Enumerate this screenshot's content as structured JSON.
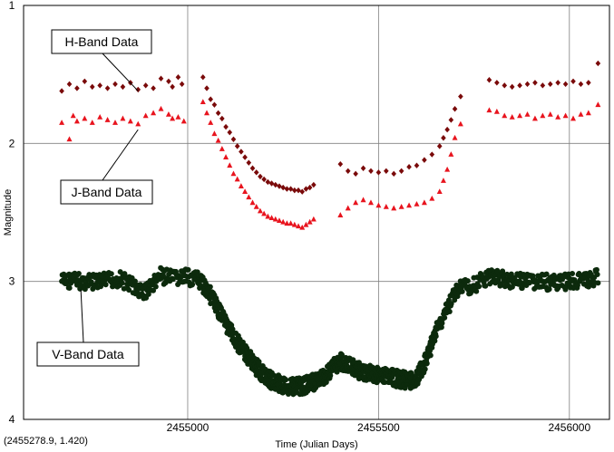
{
  "status": {
    "cursor_readout": "(2455278.9, 1.420)"
  },
  "colors": {
    "h_band": "#7a0a0a",
    "j_band": "#e8141e",
    "v_band": "#0c2a0c",
    "grid": "#808080",
    "frame": "#000000"
  },
  "chart_data": {
    "type": "scatter",
    "title": "",
    "xlabel": "Time (Julian Days)",
    "ylabel": "Magnitude",
    "xlim": [
      2454570,
      2456105
    ],
    "ylim": [
      1,
      4
    ],
    "y_inverted": true,
    "x_ticks": [
      2455000,
      2455500,
      2456000
    ],
    "x_tick_labels": [
      "2455000",
      "2455500",
      "2456000"
    ],
    "y_ticks": [
      1,
      2,
      3,
      4
    ],
    "y_tick_labels": [
      "1",
      "2",
      "3",
      "4"
    ],
    "grid": true,
    "annotations": [
      {
        "label": "H-Band Data",
        "target_x": 2454870,
        "target_y": 1.62
      },
      {
        "label": "J-Band Data",
        "target_x": 2454870,
        "target_y": 1.9
      },
      {
        "label": "V-Band Data",
        "target_x": 2454720,
        "target_y": 3.06
      }
    ],
    "series": [
      {
        "marker": "diamond",
        "color": "#7a0a0a",
        "points": [
          [
            2454670,
            1.62
          ],
          [
            2454690,
            1.57
          ],
          [
            2454710,
            1.6
          ],
          [
            2454730,
            1.55
          ],
          [
            2454750,
            1.59
          ],
          [
            2454770,
            1.58
          ],
          [
            2454790,
            1.6
          ],
          [
            2454810,
            1.57
          ],
          [
            2454830,
            1.59
          ],
          [
            2454850,
            1.56
          ],
          [
            2454870,
            1.61
          ],
          [
            2454890,
            1.58
          ],
          [
            2454910,
            1.6
          ],
          [
            2454930,
            1.53
          ],
          [
            2454950,
            1.55
          ],
          [
            2454960,
            1.59
          ],
          [
            2454975,
            1.52
          ],
          [
            2454985,
            1.57
          ],
          [
            2455040,
            1.52
          ],
          [
            2455050,
            1.6
          ],
          [
            2455060,
            1.68
          ],
          [
            2455070,
            1.72
          ],
          [
            2455080,
            1.78
          ],
          [
            2455090,
            1.82
          ],
          [
            2455100,
            1.88
          ],
          [
            2455110,
            1.92
          ],
          [
            2455120,
            1.97
          ],
          [
            2455130,
            2.02
          ],
          [
            2455140,
            2.06
          ],
          [
            2455150,
            2.1
          ],
          [
            2455160,
            2.14
          ],
          [
            2455170,
            2.18
          ],
          [
            2455180,
            2.21
          ],
          [
            2455190,
            2.24
          ],
          [
            2455200,
            2.26
          ],
          [
            2455210,
            2.28
          ],
          [
            2455220,
            2.29
          ],
          [
            2455230,
            2.3
          ],
          [
            2455240,
            2.31
          ],
          [
            2455250,
            2.32
          ],
          [
            2455260,
            2.33
          ],
          [
            2455270,
            2.33
          ],
          [
            2455280,
            2.34
          ],
          [
            2455290,
            2.34
          ],
          [
            2455300,
            2.35
          ],
          [
            2455310,
            2.33
          ],
          [
            2455320,
            2.32
          ],
          [
            2455330,
            2.3
          ],
          [
            2455400,
            2.15
          ],
          [
            2455420,
            2.2
          ],
          [
            2455440,
            2.22
          ],
          [
            2455460,
            2.18
          ],
          [
            2455480,
            2.2
          ],
          [
            2455500,
            2.21
          ],
          [
            2455520,
            2.2
          ],
          [
            2455540,
            2.22
          ],
          [
            2455560,
            2.2
          ],
          [
            2455580,
            2.17
          ],
          [
            2455600,
            2.16
          ],
          [
            2455620,
            2.12
          ],
          [
            2455640,
            2.08
          ],
          [
            2455660,
            2.02
          ],
          [
            2455670,
            1.96
          ],
          [
            2455680,
            1.9
          ],
          [
            2455690,
            1.83
          ],
          [
            2455700,
            1.75
          ],
          [
            2455715,
            1.66
          ],
          [
            2455790,
            1.54
          ],
          [
            2455810,
            1.56
          ],
          [
            2455830,
            1.58
          ],
          [
            2455850,
            1.59
          ],
          [
            2455870,
            1.58
          ],
          [
            2455890,
            1.57
          ],
          [
            2455910,
            1.56
          ],
          [
            2455930,
            1.58
          ],
          [
            2455950,
            1.57
          ],
          [
            2455970,
            1.56
          ],
          [
            2455990,
            1.57
          ],
          [
            2456010,
            1.55
          ],
          [
            2456030,
            1.57
          ],
          [
            2456050,
            1.56
          ],
          [
            2456075,
            1.42
          ]
        ]
      },
      {
        "marker": "triangle",
        "color": "#e8141e",
        "points": [
          [
            2454670,
            1.85
          ],
          [
            2454690,
            1.97
          ],
          [
            2454700,
            1.8
          ],
          [
            2454710,
            1.84
          ],
          [
            2454730,
            1.82
          ],
          [
            2454750,
            1.85
          ],
          [
            2454770,
            1.81
          ],
          [
            2454790,
            1.83
          ],
          [
            2454810,
            1.85
          ],
          [
            2454830,
            1.82
          ],
          [
            2454850,
            1.84
          ],
          [
            2454870,
            1.86
          ],
          [
            2454890,
            1.8
          ],
          [
            2454910,
            1.78
          ],
          [
            2454930,
            1.75
          ],
          [
            2454950,
            1.79
          ],
          [
            2454960,
            1.82
          ],
          [
            2454975,
            1.81
          ],
          [
            2454990,
            1.84
          ],
          [
            2455040,
            1.7
          ],
          [
            2455050,
            1.78
          ],
          [
            2455060,
            1.85
          ],
          [
            2455070,
            1.93
          ],
          [
            2455080,
            1.98
          ],
          [
            2455090,
            2.04
          ],
          [
            2455100,
            2.1
          ],
          [
            2455110,
            2.16
          ],
          [
            2455120,
            2.22
          ],
          [
            2455130,
            2.26
          ],
          [
            2455140,
            2.31
          ],
          [
            2455150,
            2.35
          ],
          [
            2455160,
            2.39
          ],
          [
            2455170,
            2.43
          ],
          [
            2455180,
            2.46
          ],
          [
            2455190,
            2.49
          ],
          [
            2455200,
            2.51
          ],
          [
            2455210,
            2.53
          ],
          [
            2455220,
            2.54
          ],
          [
            2455230,
            2.55
          ],
          [
            2455240,
            2.56
          ],
          [
            2455250,
            2.57
          ],
          [
            2455260,
            2.58
          ],
          [
            2455270,
            2.58
          ],
          [
            2455280,
            2.59
          ],
          [
            2455290,
            2.6
          ],
          [
            2455300,
            2.61
          ],
          [
            2455310,
            2.59
          ],
          [
            2455320,
            2.57
          ],
          [
            2455330,
            2.55
          ],
          [
            2455400,
            2.52
          ],
          [
            2455420,
            2.47
          ],
          [
            2455440,
            2.43
          ],
          [
            2455460,
            2.41
          ],
          [
            2455480,
            2.43
          ],
          [
            2455500,
            2.45
          ],
          [
            2455520,
            2.46
          ],
          [
            2455540,
            2.47
          ],
          [
            2455560,
            2.46
          ],
          [
            2455580,
            2.45
          ],
          [
            2455600,
            2.44
          ],
          [
            2455620,
            2.43
          ],
          [
            2455640,
            2.4
          ],
          [
            2455660,
            2.35
          ],
          [
            2455670,
            2.27
          ],
          [
            2455680,
            2.19
          ],
          [
            2455690,
            2.08
          ],
          [
            2455700,
            1.96
          ],
          [
            2455715,
            1.86
          ],
          [
            2455790,
            1.76
          ],
          [
            2455810,
            1.77
          ],
          [
            2455830,
            1.8
          ],
          [
            2455850,
            1.81
          ],
          [
            2455870,
            1.8
          ],
          [
            2455890,
            1.79
          ],
          [
            2455910,
            1.82
          ],
          [
            2455930,
            1.8
          ],
          [
            2455950,
            1.79
          ],
          [
            2455970,
            1.81
          ],
          [
            2455990,
            1.8
          ],
          [
            2456010,
            1.82
          ],
          [
            2456030,
            1.79
          ],
          [
            2456050,
            1.78
          ],
          [
            2456075,
            1.72
          ]
        ]
      },
      {
        "marker": "circle",
        "color": "#0c2a0c",
        "profile": [
          [
            2454670,
            3.0
          ],
          [
            2454700,
            2.99
          ],
          [
            2454740,
            3.01
          ],
          [
            2454780,
            3.0
          ],
          [
            2454820,
            2.98
          ],
          [
            2454850,
            3.02
          ],
          [
            2454880,
            3.08
          ],
          [
            2454900,
            3.05
          ],
          [
            2454930,
            2.96
          ],
          [
            2454960,
            2.98
          ],
          [
            2454990,
            2.97
          ],
          [
            2455020,
            2.98
          ],
          [
            2455050,
            3.05
          ],
          [
            2455080,
            3.2
          ],
          [
            2455100,
            3.3
          ],
          [
            2455120,
            3.4
          ],
          [
            2455140,
            3.48
          ],
          [
            2455160,
            3.55
          ],
          [
            2455180,
            3.62
          ],
          [
            2455200,
            3.68
          ],
          [
            2455220,
            3.72
          ],
          [
            2455240,
            3.74
          ],
          [
            2455260,
            3.76
          ],
          [
            2455280,
            3.76
          ],
          [
            2455300,
            3.76
          ],
          [
            2455320,
            3.74
          ],
          [
            2455340,
            3.72
          ],
          [
            2455360,
            3.68
          ],
          [
            2455380,
            3.62
          ],
          [
            2455400,
            3.58
          ],
          [
            2455430,
            3.62
          ],
          [
            2455460,
            3.66
          ],
          [
            2455500,
            3.68
          ],
          [
            2455540,
            3.7
          ],
          [
            2455580,
            3.72
          ],
          [
            2455600,
            3.7
          ],
          [
            2455620,
            3.6
          ],
          [
            2455640,
            3.45
          ],
          [
            2455660,
            3.3
          ],
          [
            2455680,
            3.2
          ],
          [
            2455700,
            3.08
          ],
          [
            2455720,
            3.04
          ],
          [
            2455750,
            3.03
          ],
          [
            2455780,
            2.98
          ],
          [
            2455800,
            2.95
          ],
          [
            2455830,
            2.99
          ],
          [
            2455870,
            3.0
          ],
          [
            2455920,
            3.0
          ],
          [
            2455970,
            3.01
          ],
          [
            2456020,
            3.0
          ],
          [
            2456075,
            2.97
          ]
        ],
        "spread": 0.06
      }
    ]
  }
}
